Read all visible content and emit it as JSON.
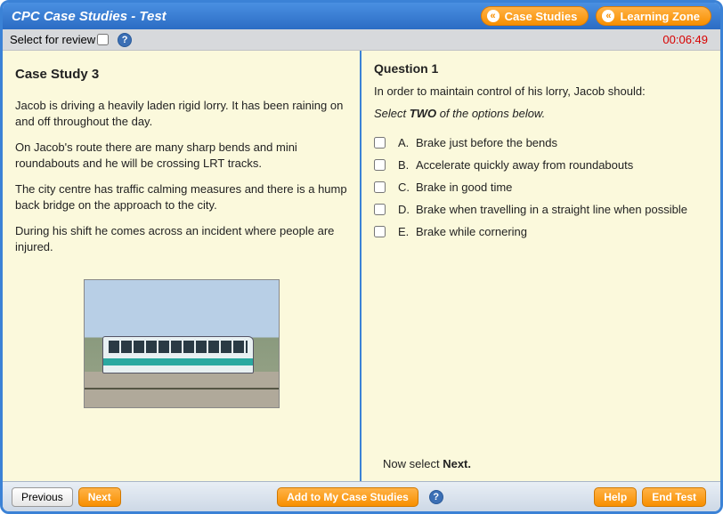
{
  "header": {
    "title": "CPC Case Studies - Test",
    "nav": [
      {
        "label": "Case Studies"
      },
      {
        "label": "Learning Zone"
      }
    ]
  },
  "subbar": {
    "review_label": "Select for review",
    "timer": "00:06:49"
  },
  "case": {
    "heading": "Case Study 3",
    "paragraphs": [
      "Jacob is driving a heavily laden rigid lorry. It has been raining on and off throughout the day.",
      "On Jacob's route there are many sharp bends and mini roundabouts and he will be crossing LRT tracks.",
      "The city centre has traffic calming measures and there is a hump back bridge on the approach to the city.",
      "During his shift he comes across an incident where people are injured."
    ]
  },
  "question": {
    "title": "Question 1",
    "text": "In order to maintain control of his lorry, Jacob should:",
    "instruction_prefix": "Select ",
    "instruction_bold": "TWO",
    "instruction_suffix": " of the options below.",
    "options": [
      {
        "letter": "A.",
        "text": "Brake just before the bends"
      },
      {
        "letter": "B.",
        "text": "Accelerate quickly away from roundabouts"
      },
      {
        "letter": "C.",
        "text": "Brake in good time"
      },
      {
        "letter": "D.",
        "text": "Brake when travelling in a straight line when possible"
      },
      {
        "letter": "E.",
        "text": "Brake while cornering"
      }
    ],
    "now_select_prefix": "Now select ",
    "now_select_bold": "Next."
  },
  "footer": {
    "previous": "Previous",
    "next": "Next",
    "add": "Add to My Case Studies",
    "help": "Help",
    "end": "End Test"
  },
  "colors": {
    "frame": "#3b82d6",
    "panel_bg": "#fbf9dc",
    "orange": "#f88f00",
    "timer": "#d80000"
  }
}
